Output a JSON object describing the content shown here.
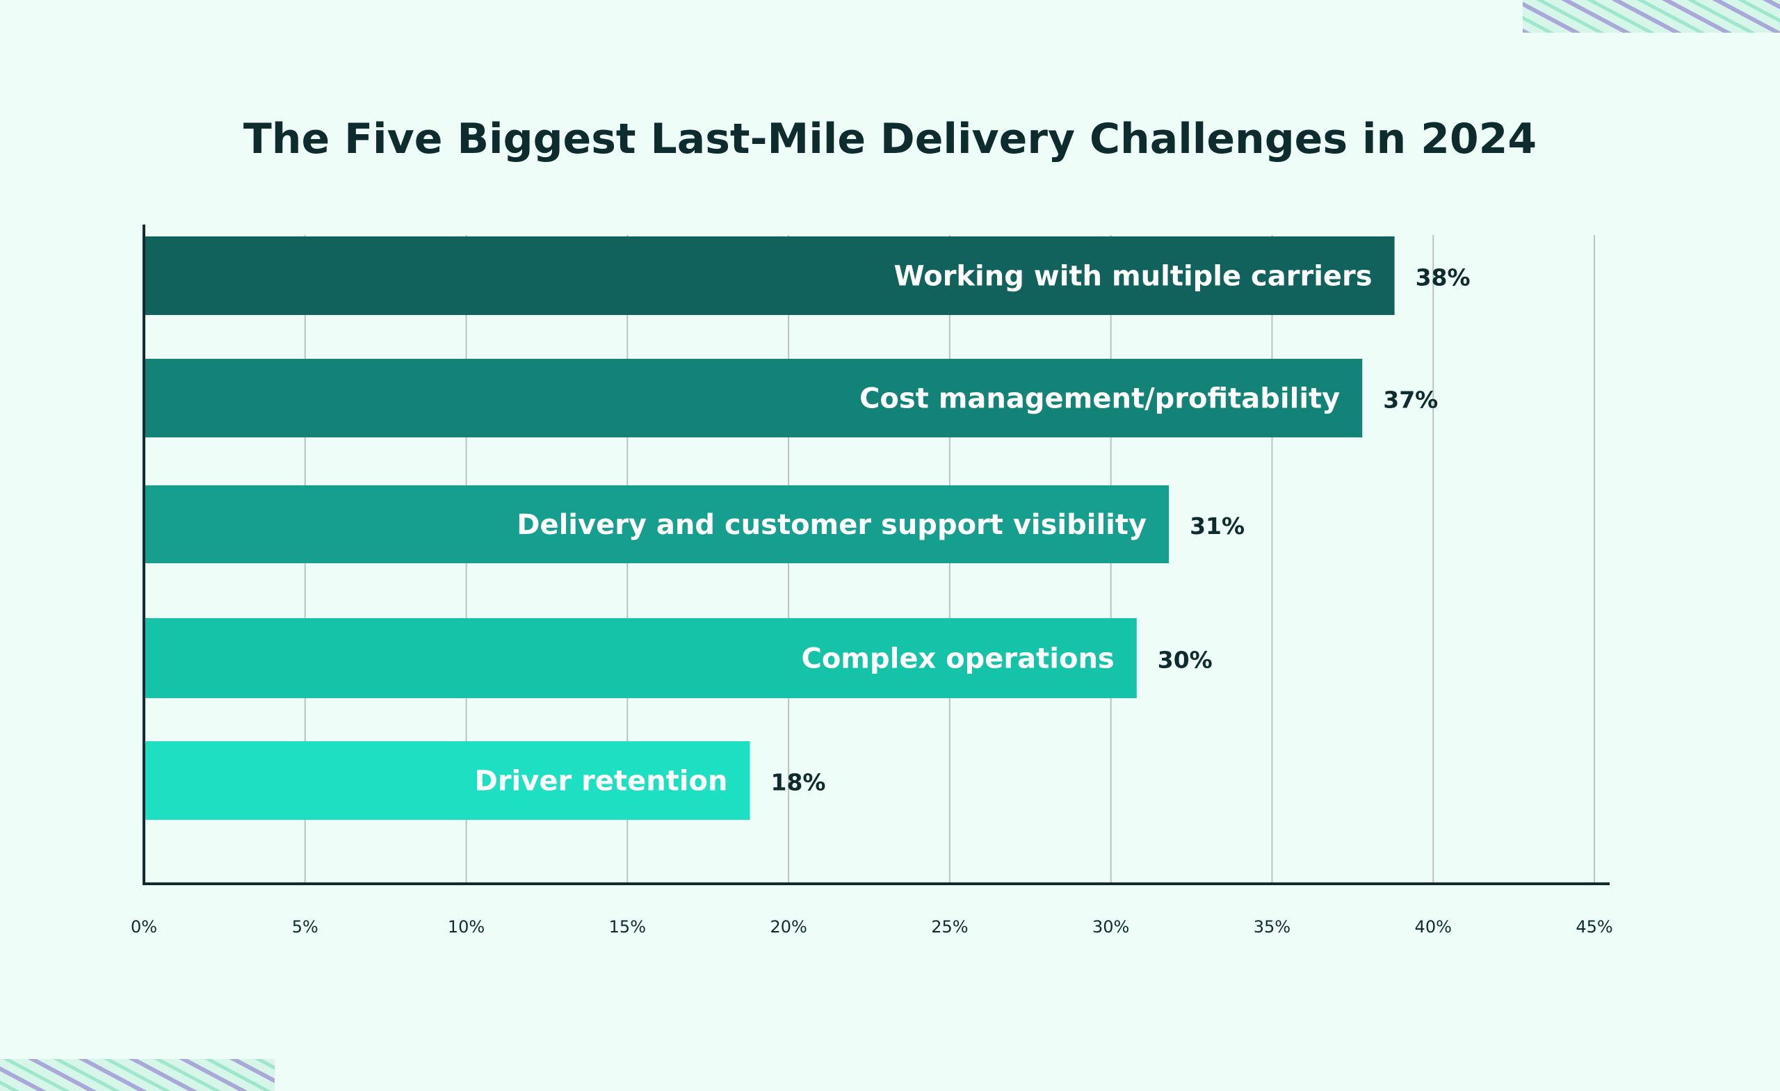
{
  "chart_data": {
    "type": "bar",
    "orientation": "horizontal",
    "title": "The Five Biggest Last-Mile Delivery Challenges in 2024",
    "categories": [
      "Working with multiple carriers",
      "Cost management/profitability",
      "Delivery and customer support visibility",
      "Complex operations",
      "Driver retention"
    ],
    "values": [
      38,
      37,
      31,
      30,
      18
    ],
    "value_labels": [
      "38%",
      "37%",
      "31%",
      "30%",
      "18%"
    ],
    "bar_colors": [
      "#11615c",
      "#138378",
      "#169f8f",
      "#15c3a8",
      "#1ddfc2"
    ],
    "xlabel": "",
    "ylabel": "",
    "xlim": [
      0,
      45
    ],
    "x_ticks": [
      0,
      5,
      10,
      15,
      20,
      25,
      30,
      35,
      40,
      45
    ],
    "x_tick_labels": [
      "0%",
      "5%",
      "10%",
      "15%",
      "20%",
      "25%",
      "30%",
      "35%",
      "40%",
      "45%"
    ],
    "grid": true,
    "legend": "none"
  },
  "colors": {
    "background": "#effdf8",
    "axis": "#0e2b2e",
    "gridline": "#b9c4c1",
    "text": "#0e2b2e",
    "stripe_accent": "#a9a8d8"
  }
}
